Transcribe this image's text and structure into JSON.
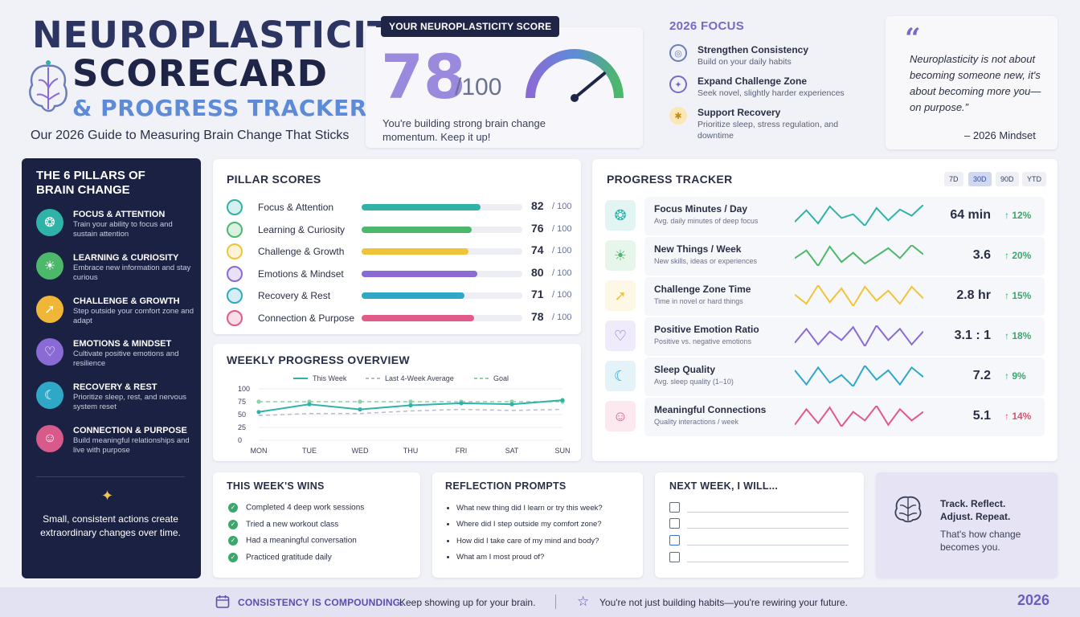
{
  "header": {
    "title_line1": "NEUROPLASTICITY",
    "title_line2": "SCORECARD",
    "title_line3": "& PROGRESS TRACKER",
    "subtitle": "Our 2026 Guide to Measuring Brain Change That Sticks"
  },
  "score": {
    "tag": "YOUR NEUROPLASTICITY SCORE",
    "value": "78",
    "max": "/100",
    "fraction": 0.78,
    "message": "You're building strong brain change momentum. Keep it up!"
  },
  "focus": {
    "title": "2026 FOCUS",
    "items": [
      {
        "title": "Strengthen Consistency",
        "desc": "Build on your daily habits",
        "icon": "target-icon",
        "color": "#6a7db8"
      },
      {
        "title": "Expand Challenge Zone",
        "desc": "Seek novel, slightly harder experiences",
        "icon": "compass-icon",
        "color": "#7a68c7"
      },
      {
        "title": "Support Recovery",
        "desc": "Prioritize sleep, stress regulation, and downtime",
        "icon": "runner-icon",
        "color": "#e0a63a"
      }
    ]
  },
  "quote": {
    "mark": "“",
    "text": "Neuroplasticity is not about becoming someone new, it's about becoming more you—on purpose.”",
    "author": "– 2026 Mindset"
  },
  "pillars": {
    "title": "THE 6 PILLARS OF BRAIN CHANGE",
    "items": [
      {
        "title": "FOCUS & ATTENTION",
        "desc": "Train your ability to focus and sustain attention",
        "icon": "brain-icon",
        "color": "#2fb3a8"
      },
      {
        "title": "LEARNING & CURIOSITY",
        "desc": "Embrace new information and stay curious",
        "icon": "lightbulb-icon",
        "color": "#4cb86a"
      },
      {
        "title": "CHALLENGE & GROWTH",
        "desc": "Step outside your comfort zone and adapt",
        "icon": "runner-icon",
        "color": "#f0b638"
      },
      {
        "title": "EMOTIONS & MINDSET",
        "desc": "Cultivate positive emotions and resilience",
        "icon": "heart-icon",
        "color": "#8a6bd6"
      },
      {
        "title": "RECOVERY & REST",
        "desc": "Prioritize sleep, rest, and nervous system reset",
        "icon": "moon-icon",
        "color": "#2fa8c8"
      },
      {
        "title": "CONNECTION & PURPOSE",
        "desc": "Build meaningful relationships and live with purpose",
        "icon": "people-icon",
        "color": "#d85a8a"
      }
    ],
    "message": "Small, consistent actions create extraordinary changes over time."
  },
  "pillar_scores": {
    "title": "PILLAR SCORES",
    "max_label": "/ 100",
    "rows": [
      {
        "label": "Focus & Attention",
        "value": 82,
        "color": "#2fb3a8"
      },
      {
        "label": "Learning & Curiosity",
        "value": 76,
        "color": "#4cb86a"
      },
      {
        "label": "Challenge & Growth",
        "value": 74,
        "color": "#f0c43a"
      },
      {
        "label": "Emotions & Mindset",
        "value": 80,
        "color": "#8a6bd6"
      },
      {
        "label": "Recovery & Rest",
        "value": 71,
        "color": "#2fa8c8"
      },
      {
        "label": "Connection & Purpose",
        "value": 78,
        "color": "#e05a8a"
      }
    ]
  },
  "chart_data": {
    "type": "line",
    "title": "WEEKLY PROGRESS OVERVIEW",
    "categories": [
      "MON",
      "TUE",
      "WED",
      "THU",
      "FRI",
      "SAT",
      "SUN"
    ],
    "ylim": [
      0,
      100
    ],
    "yticks": [
      0,
      25,
      50,
      75,
      100
    ],
    "legend_placement": "top",
    "series": [
      {
        "name": "This Week",
        "values": [
          55,
          70,
          60,
          68,
          72,
          70,
          78
        ],
        "color": "#2fb3a8",
        "style": "solid"
      },
      {
        "name": "Last 4-Week Average",
        "values": [
          48,
          52,
          52,
          57,
          60,
          58,
          60
        ],
        "color": "#b9bccb",
        "style": "dashed"
      },
      {
        "name": "Goal",
        "values": [
          75,
          75,
          75,
          75,
          75,
          75,
          75
        ],
        "color": "#8fd0a8",
        "style": "dashed"
      }
    ]
  },
  "tracker": {
    "title": "PROGRESS TRACKER",
    "ranges": [
      "7D",
      "30D",
      "90D",
      "YTD"
    ],
    "active_range": "30D",
    "rows": [
      {
        "title": "Focus Minutes / Day",
        "desc": "Avg. daily minutes of deep focus",
        "value": "64 min",
        "change": "↑ 12%",
        "color": "#2fb3a8",
        "icon": "brain-icon",
        "trend": [
          40,
          55,
          38,
          60,
          45,
          50,
          35,
          58,
          42,
          56,
          48,
          62
        ]
      },
      {
        "title": "New Things / Week",
        "desc": "New skills, ideas or experiences",
        "value": "3.6",
        "change": "↑ 20%",
        "color": "#4cb86a",
        "icon": "lightbulb-icon",
        "trend": [
          45,
          55,
          35,
          60,
          40,
          52,
          38,
          48,
          58,
          45,
          62,
          50
        ]
      },
      {
        "title": "Challenge Zone Time",
        "desc": "Time in novel or hard things",
        "value": "2.8 hr",
        "change": "↑ 15%",
        "color": "#f0c43a",
        "icon": "runner-icon",
        "trend": [
          50,
          38,
          62,
          40,
          58,
          35,
          60,
          42,
          55,
          38,
          60,
          45
        ]
      },
      {
        "title": "Positive Emotion Ratio",
        "desc": "Positive vs. negative emotions",
        "value": "3.1 : 1",
        "change": "↑ 18%",
        "color": "#8a6bd6",
        "icon": "heart-icon",
        "trend": [
          42,
          58,
          40,
          55,
          45,
          60,
          38,
          62,
          45,
          58,
          40,
          55
        ]
      },
      {
        "title": "Sleep Quality",
        "desc": "Avg. sleep quality (1–10)",
        "value": "7.2",
        "change": "↑ 9%",
        "color": "#2fa8c8",
        "icon": "moon-icon",
        "trend": [
          55,
          40,
          58,
          42,
          50,
          38,
          60,
          45,
          55,
          40,
          58,
          48
        ]
      },
      {
        "title": "Meaningful Connections",
        "desc": "Quality interactions / week",
        "value": "5.1",
        "change": "↑ 14%",
        "color": "#e05a8a",
        "icon": "people-icon",
        "trend": [
          40,
          58,
          42,
          60,
          38,
          55,
          45,
          62,
          40,
          58,
          45,
          55
        ]
      }
    ]
  },
  "wins": {
    "title": "THIS WEEK'S WINS",
    "items": [
      "Completed 4 deep work sessions",
      "Tried a new workout class",
      "Had a meaningful conversation",
      "Practiced gratitude daily"
    ]
  },
  "prompts": {
    "title": "REFLECTION PROMPTS",
    "items": [
      "What new thing did I learn or try this week?",
      "Where did I step outside my comfort zone?",
      "How did I take care of my mind and body?",
      "What am I most proud of?"
    ]
  },
  "next_week": {
    "title": "NEXT WEEK, I WILL..."
  },
  "track_card": {
    "title": "Track. Reflect. Adjust. Repeat.",
    "subtitle": "That's how change becomes you."
  },
  "footer": {
    "label": "CONSISTENCY IS COMPOUNDING.",
    "text1": "Keep showing up for your brain.",
    "text2": "You're not just building habits—you're rewiring your future.",
    "year": "2026"
  }
}
